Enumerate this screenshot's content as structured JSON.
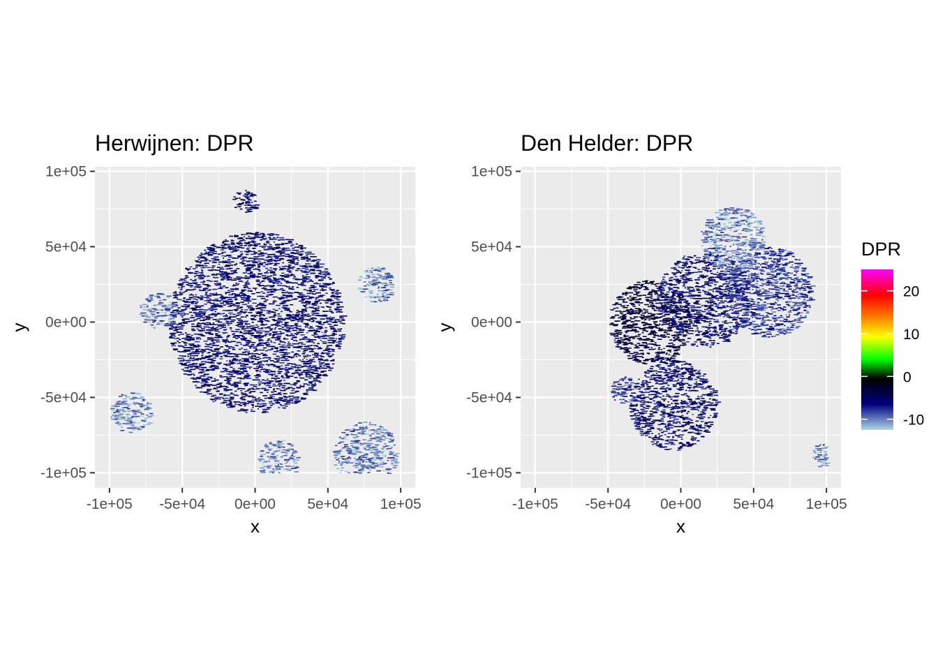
{
  "chart_data": [
    {
      "type": "heatmap",
      "title": "Herwijnen: DPR",
      "xlabel": "x",
      "ylabel": "y",
      "xlim": [
        -110000,
        110000
      ],
      "ylim": [
        -110000,
        103000
      ],
      "x_ticks": [
        "-1e+05",
        "-5e+04",
        "0e+00",
        "5e+04",
        "1e+05"
      ],
      "y_ticks": [
        "-1e+05",
        "-5e+04",
        "0e+00",
        "5e+04",
        "1e+05"
      ],
      "x_tick_values": [
        -100000,
        -50000,
        0,
        50000,
        100000
      ],
      "y_tick_values": [
        -100000,
        -50000,
        0,
        50000,
        100000
      ],
      "grid": true,
      "description_of_data": "polar radar scan centered at origin, dense low DPR (about -8 to -3) within ~60 km radius, patches near -10 at edges",
      "regions": [
        {
          "cx": 0,
          "cy": 0,
          "r": 60000,
          "dpr": -6
        },
        {
          "cx": -8000,
          "cy": 80000,
          "r": 8000,
          "dpr": -6
        },
        {
          "cx": -68000,
          "cy": 8000,
          "r": 12000,
          "dpr": -10
        },
        {
          "cx": 82000,
          "cy": 25000,
          "r": 12000,
          "dpr": -10
        },
        {
          "cx": -86000,
          "cy": -60000,
          "r": 14000,
          "dpr": -10
        },
        {
          "cx": 75000,
          "cy": -88000,
          "r": 22000,
          "dpr": -10
        },
        {
          "cx": 15000,
          "cy": -92000,
          "r": 14000,
          "dpr": -10
        }
      ]
    },
    {
      "type": "heatmap",
      "title": "Den Helder: DPR",
      "xlabel": "x",
      "ylabel": "y",
      "xlim": [
        -110000,
        110000
      ],
      "ylim": [
        -110000,
        103000
      ],
      "x_ticks": [
        "-1e+05",
        "-5e+04",
        "0e+00",
        "5e+04",
        "1e+05"
      ],
      "y_ticks": [
        "-1e+05",
        "-5e+04",
        "0e+00",
        "5e+04",
        "1e+05"
      ],
      "x_tick_values": [
        -100000,
        -50000,
        0,
        50000,
        100000
      ],
      "y_tick_values": [
        -100000,
        -50000,
        0,
        50000,
        100000
      ],
      "grid": true,
      "regions": [
        {
          "cx": -22000,
          "cy": 0,
          "r": 28000,
          "dpr": -3
        },
        {
          "cx": -6000,
          "cy": -55000,
          "r": 30000,
          "dpr": -6
        },
        {
          "cx": 15000,
          "cy": 15000,
          "r": 32000,
          "dpr": -6
        },
        {
          "cx": 60000,
          "cy": 20000,
          "r": 30000,
          "dpr": -8
        },
        {
          "cx": 35000,
          "cy": 55000,
          "r": 22000,
          "dpr": -10
        },
        {
          "cx": 96000,
          "cy": -88000,
          "r": 8000,
          "dpr": -10
        },
        {
          "cx": -40000,
          "cy": -45000,
          "r": 9000,
          "dpr": -8
        }
      ]
    }
  ],
  "legend": {
    "title": "DPR",
    "ticks": [
      "20",
      "10",
      "0",
      "-10"
    ],
    "tick_values": [
      20,
      10,
      0,
      -10
    ],
    "range": [
      -12.5,
      25
    ],
    "colors": [
      "#add8e6",
      "#00007f",
      "#000000",
      "#00ff00",
      "#ffff00",
      "#ff8000",
      "#ff0000",
      "#ff00ff"
    ],
    "placement": "right"
  }
}
